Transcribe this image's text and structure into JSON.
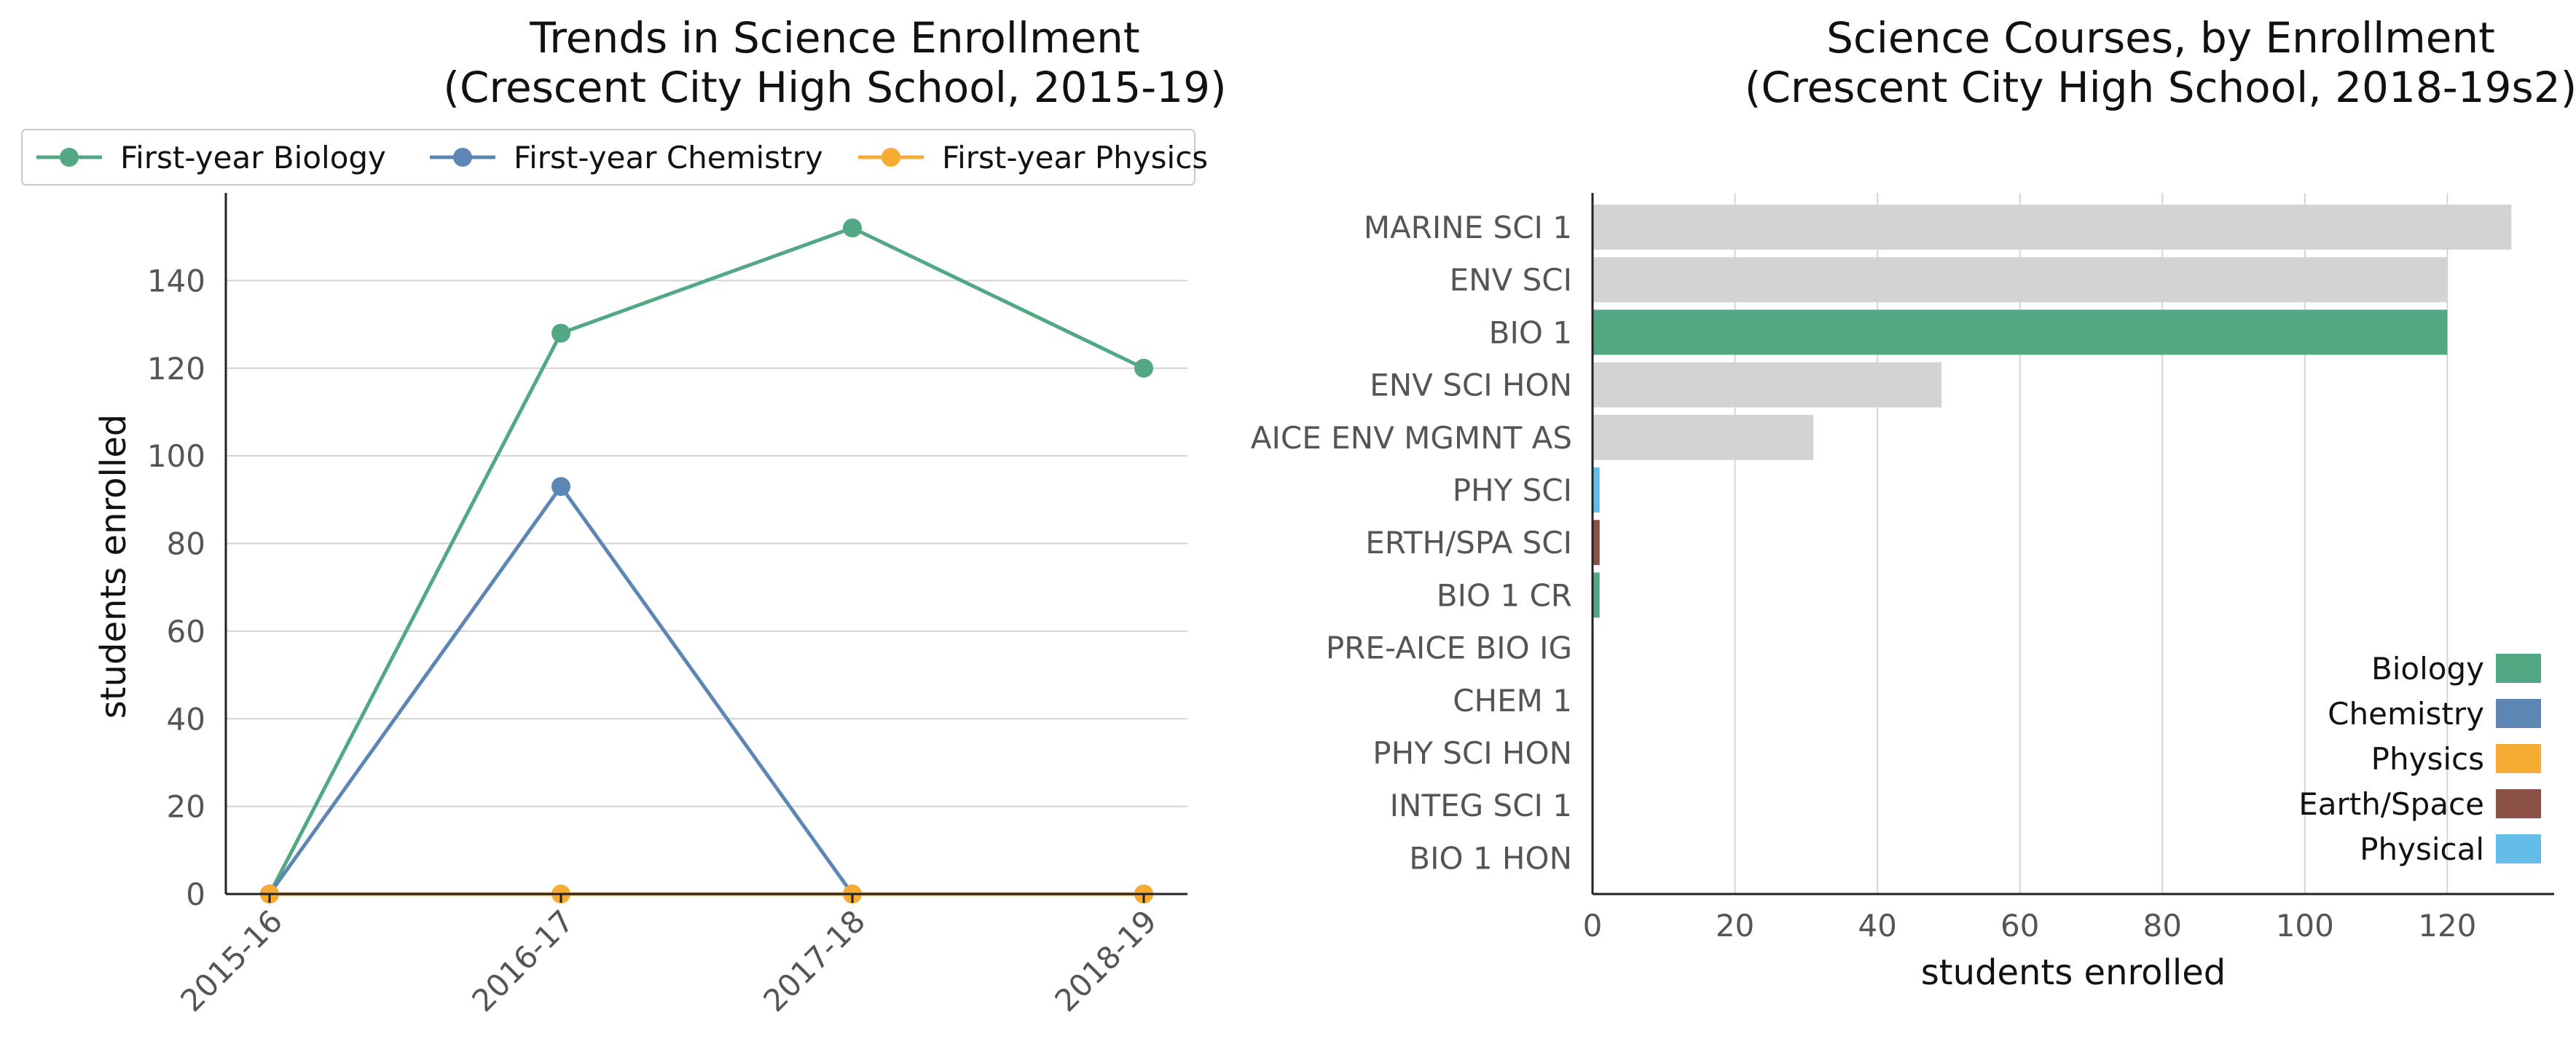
{
  "chart_data": [
    {
      "type": "line",
      "title": [
        "Trends in Science Enrollment",
        "(Crescent City High School, 2015-19)"
      ],
      "xlabel": "",
      "ylabel": "students enrolled",
      "categories": [
        "2015-16",
        "2016-17",
        "2017-18",
        "2018-19"
      ],
      "ylim": [
        0,
        160
      ],
      "yticks": [
        0,
        20,
        40,
        60,
        80,
        100,
        120,
        140
      ],
      "grid": "horizontal",
      "legend_position": "top",
      "series": [
        {
          "name": "First-year Biology",
          "color": "#52a882",
          "values": [
            0,
            128,
            152,
            120
          ]
        },
        {
          "name": "First-year Chemistry",
          "color": "#5e86b5",
          "values": [
            0,
            93,
            0,
            0
          ]
        },
        {
          "name": "First-year Physics",
          "color": "#f6ab33",
          "values": [
            0,
            0,
            0,
            0
          ]
        }
      ]
    },
    {
      "type": "bar",
      "orientation": "horizontal",
      "title": [
        "Science Courses, by Enrollment",
        "(Crescent City High School, 2018-19s2)"
      ],
      "xlabel": "students enrolled",
      "ylabel": "",
      "xlim": [
        0,
        135
      ],
      "xticks": [
        0,
        20,
        40,
        60,
        80,
        100,
        120
      ],
      "grid": "vertical",
      "legend_position": "bottom-right",
      "categories": [
        "MARINE SCI 1",
        "ENV SCI",
        "BIO 1",
        "ENV SCI HON",
        "AICE ENV MGMNT AS",
        "PHY SCI",
        "ERTH/SPA SCI",
        "BIO 1 CR",
        "PRE-AICE BIO IG",
        "CHEM 1",
        "PHY SCI HON",
        "INTEG SCI 1",
        "BIO 1 HON"
      ],
      "values": [
        129,
        120,
        120,
        49,
        31,
        1,
        1,
        1,
        0,
        0,
        0,
        0,
        0
      ],
      "bar_groups": [
        "Other",
        "Other",
        "Biology",
        "Other",
        "Other",
        "Physical",
        "Earth/Space",
        "Biology",
        "Biology",
        "Chemistry",
        "Physical",
        "Other",
        "Biology"
      ],
      "group_colors": {
        "Other": "#d3d3d3",
        "Biology": "#52a882",
        "Chemistry": "#5e86b5",
        "Physics": "#f6ab33",
        "Earth/Space": "#8b5147",
        "Physical": "#63bde8"
      },
      "legend": [
        "Biology",
        "Chemistry",
        "Physics",
        "Earth/Space",
        "Physical"
      ]
    }
  ]
}
